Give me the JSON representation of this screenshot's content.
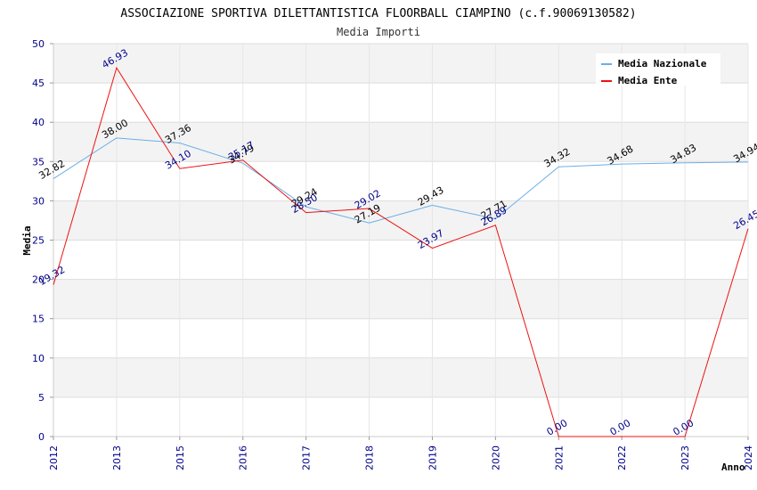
{
  "chart_data": {
    "type": "line",
    "title": "ASSOCIAZIONE SPORTIVA DILETTANTISTICA FLOORBALL CIAMPINO (c.f.90069130582)",
    "subtitle": "Media Importi",
    "xlabel": "Anno",
    "ylabel": "Media",
    "ylim": [
      0,
      50
    ],
    "yticks": [
      0,
      5,
      10,
      15,
      20,
      25,
      30,
      35,
      40,
      45,
      50
    ],
    "categories": [
      "2012",
      "2013",
      "2015",
      "2016",
      "2017",
      "2018",
      "2019",
      "2020",
      "2021",
      "2022",
      "2023",
      "2024"
    ],
    "series": [
      {
        "name": "Media Nazionale",
        "color": "#6aaee6",
        "label_color": "#000000",
        "values": [
          32.82,
          38.0,
          37.36,
          34.79,
          29.24,
          27.19,
          29.43,
          27.71,
          34.32,
          34.68,
          34.83,
          34.94
        ],
        "labels": [
          "32.82",
          "38.00",
          "37.36",
          "34.79",
          "29.24",
          "27.19",
          "29.43",
          "27.71",
          "34.32",
          "34.68",
          "34.83",
          "34.94"
        ]
      },
      {
        "name": "Media Ente",
        "color": "#ee1111",
        "label_color": "#00008b",
        "values": [
          19.32,
          46.93,
          34.1,
          35.17,
          28.5,
          29.02,
          23.97,
          26.89,
          0.0,
          0.0,
          0.0,
          26.45
        ],
        "labels": [
          "19.32",
          "46.93",
          "34.10",
          "35.17",
          "28.50",
          "29.02",
          "23.97",
          "26.89",
          "0.00",
          "0.00",
          "0.00",
          "26.45"
        ]
      }
    ],
    "legend": "top-right",
    "grid": true
  }
}
